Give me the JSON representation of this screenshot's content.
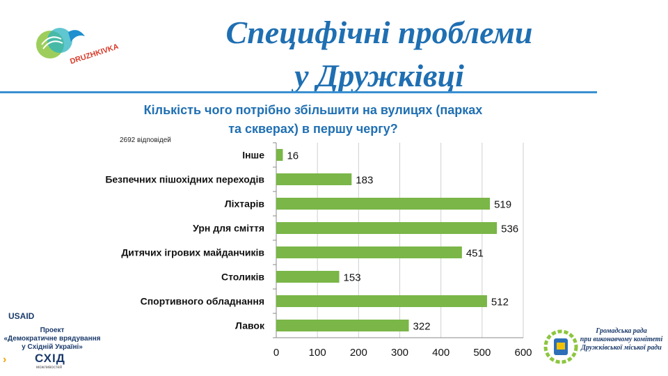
{
  "header": {
    "title_line1": "Специфічні проблеми",
    "title_line2": "у Дружківці",
    "logo_text": "DRUZHKIVKA"
  },
  "question": {
    "line1": "Кількість чого потрібно збільшити на вулицях (парках",
    "line2": "та скверах) в першу чергу?"
  },
  "responses_note": "2692 відповідей",
  "footer": {
    "usaid": "USAID",
    "project_line1": "Проект",
    "project_line2": "«Демократичне врядування",
    "project_line3": "у Східній Україні»",
    "skhid": "СХІД",
    "skhid_sub": "можливостей",
    "council_line1": "Громадська рада",
    "council_line2": "при виконавчому комітеті",
    "council_line3": "Дружківської міської ради"
  },
  "colors": {
    "title": "#1f6fb2",
    "bar": "#7ab648",
    "accent_line": "#3a8fd1"
  },
  "chart_data": {
    "type": "bar",
    "orientation": "horizontal",
    "categories": [
      "Інше",
      "Безпечних пішохідних переходів",
      "Ліхтарів",
      "Урн для сміття",
      "Дитячих ігрових майданчиків",
      "Столиків",
      "Спортивного обладнання",
      "Лавок"
    ],
    "values": [
      16,
      183,
      519,
      536,
      451,
      153,
      512,
      322
    ],
    "xlim": [
      0,
      600
    ],
    "xticks": [
      0,
      100,
      200,
      300,
      400,
      500,
      600
    ],
    "grid": true,
    "data_labels": true
  }
}
